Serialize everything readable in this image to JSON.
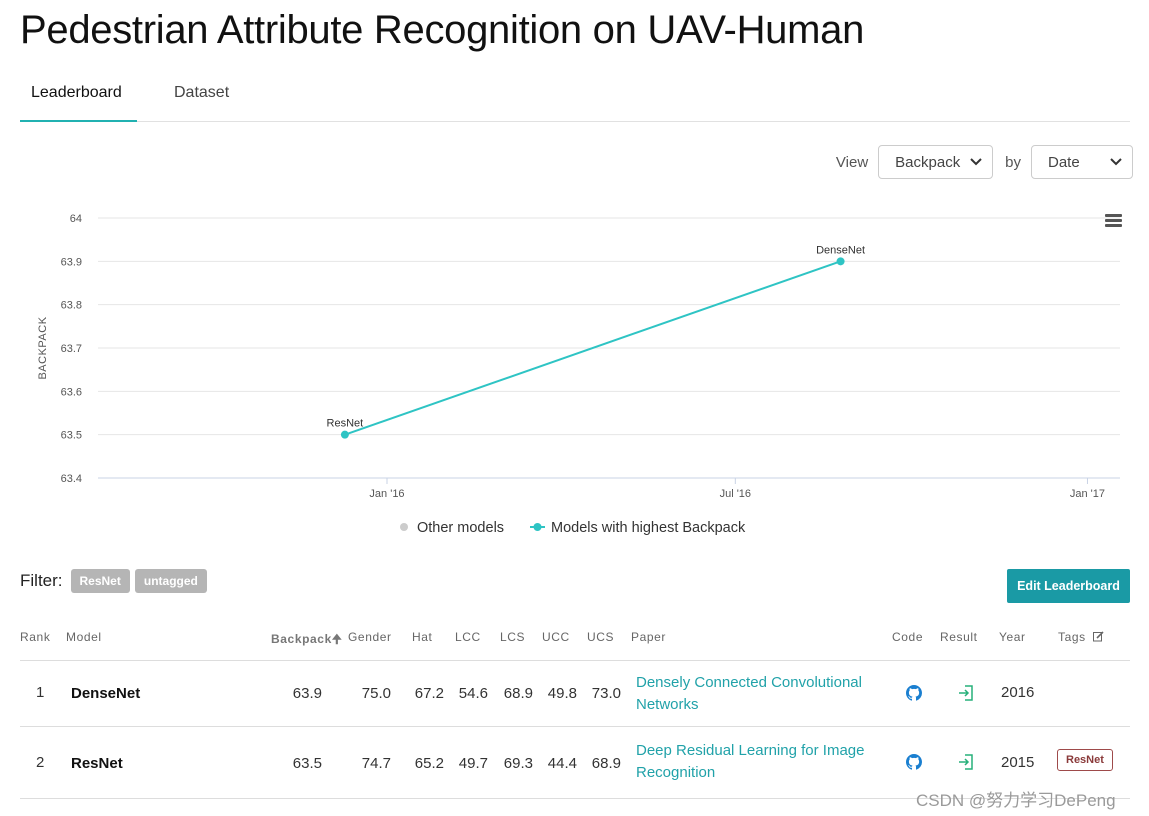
{
  "page": {
    "title": "Pedestrian Attribute Recognition on UAV-Human"
  },
  "tabs": [
    {
      "label": "Leaderboard",
      "active": true
    },
    {
      "label": "Dataset",
      "active": false
    }
  ],
  "view": {
    "view_label": "View",
    "metric": "Backpack",
    "by_label": "by",
    "order": "Date"
  },
  "colors": {
    "accent": "#21b1b1",
    "series_line": "#2ec4c4",
    "other_dot": "#cccccc",
    "button": "#1a9aa5",
    "link": "#21a2a9"
  },
  "chart_data": {
    "type": "line",
    "ylabel": "BACKPACK",
    "xlabel": "",
    "ylim": [
      63.4,
      64
    ],
    "yticks": [
      "64",
      "63.9",
      "63.8",
      "63.7",
      "63.6",
      "63.5",
      "63.4"
    ],
    "xticks": [
      {
        "label": "Jan '16",
        "date": "2016-01-01"
      },
      {
        "label": "Jul '16",
        "date": "2016-07-01"
      },
      {
        "label": "Jan '17",
        "date": "2017-01-01"
      }
    ],
    "series": [
      {
        "name": "Models with highest Backpack",
        "points": [
          {
            "date": "2015-12-10",
            "y": 63.5,
            "label": "ResNet"
          },
          {
            "date": "2016-08-25",
            "y": 63.9,
            "label": "DenseNet"
          }
        ]
      }
    ],
    "legend": [
      "Other models",
      "Models with highest Backpack"
    ],
    "legend_position": "bottom",
    "grid": true
  },
  "filter": {
    "label": "Filter:",
    "chips": [
      "ResNet",
      "untagged"
    ]
  },
  "edit_button": "Edit Leaderboard",
  "table": {
    "headers": {
      "rank": "Rank",
      "model": "Model",
      "backpack": "Backpack",
      "sort_arrow": "🠉",
      "gender": "Gender",
      "hat": "Hat",
      "lcc": "LCC",
      "lcs": "LCS",
      "ucc": "UCC",
      "ucs": "UCS",
      "paper": "Paper",
      "code": "Code",
      "result": "Result",
      "year": "Year",
      "tags": "Tags"
    },
    "rows": [
      {
        "rank": "1",
        "model": "DenseNet",
        "backpack": "63.9",
        "gender": "75.0",
        "hat": "67.2",
        "lcc": "54.6",
        "lcs": "68.9",
        "ucc": "49.8",
        "ucs": "73.0",
        "paper_line1": "Densely Connected Convolutional",
        "paper_line2": "Networks",
        "year": "2016",
        "tag": ""
      },
      {
        "rank": "2",
        "model": "ResNet",
        "backpack": "63.5",
        "gender": "74.7",
        "hat": "65.2",
        "lcc": "49.7",
        "lcs": "69.3",
        "ucc": "44.4",
        "ucs": "68.9",
        "paper_line1": "Deep Residual Learning for Image",
        "paper_line2": "Recognition",
        "year": "2015",
        "tag": "ResNet"
      }
    ]
  },
  "watermark": "CSDN @努力学习DePeng"
}
